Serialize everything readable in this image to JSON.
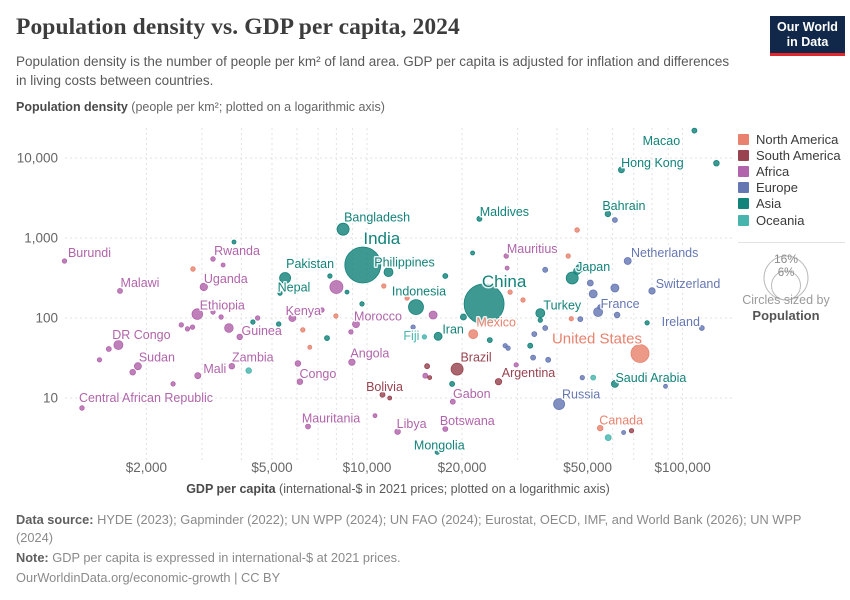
{
  "header": {
    "title": "Population density vs. GDP per capita, 2024",
    "subtitle": "Population density is the number of people per km² of land area. GDP per capita is adjusted for inflation and differences in living costs between countries.",
    "logo": {
      "line1": "Our World",
      "line2": "in Data"
    }
  },
  "legend": {
    "items": [
      {
        "label": "North America",
        "continent": "NA"
      },
      {
        "label": "South America",
        "continent": "SA"
      },
      {
        "label": "Africa",
        "continent": "AF"
      },
      {
        "label": "Europe",
        "continent": "EU"
      },
      {
        "label": "Asia",
        "continent": "AS"
      },
      {
        "label": "Oceania",
        "continent": "OC"
      }
    ],
    "size_legend": {
      "outer_label": "16%",
      "inner_label": "6%",
      "caption": "Circles sized by",
      "caption_bold": "Population"
    }
  },
  "chart_data": {
    "type": "scatter",
    "continent_colors": {
      "NA": "#e8826e",
      "SA": "#98434f",
      "AF": "#b164ab",
      "EU": "#6577b3",
      "AS": "#12837a",
      "OC": "#47b5ad"
    },
    "x_axis": {
      "scale": "log",
      "title_bold": "GDP per capita",
      "title_rest": " (international-$ in 2021 prices; plotted on a logarithmic axis)",
      "range": [
        1000,
        140000
      ],
      "ticks": [
        {
          "value": 2000,
          "label": "$2,000"
        },
        {
          "value": 5000,
          "label": "$5,000"
        },
        {
          "value": 10000,
          "label": "$10,000"
        },
        {
          "value": 20000,
          "label": "$20,000"
        },
        {
          "value": 50000,
          "label": "$50,000"
        },
        {
          "value": 100000,
          "label": "$100,000"
        }
      ],
      "gridlines": [
        2000,
        3000,
        4000,
        5000,
        6000,
        7000,
        8000,
        9000,
        10000,
        20000,
        30000,
        40000,
        50000,
        60000,
        70000,
        80000,
        90000,
        100000
      ]
    },
    "y_axis": {
      "scale": "log",
      "title_bold": "Population density",
      "title_rest": " (people per km²; plotted on a logarithmic axis)",
      "range": [
        1.7,
        24000
      ],
      "ticks": [
        {
          "value": 10,
          "label": "10"
        },
        {
          "value": 100,
          "label": "100"
        },
        {
          "value": 1000,
          "label": "1,000"
        },
        {
          "value": 10000,
          "label": "10,000"
        }
      ]
    },
    "points_format": [
      "name",
      "continent",
      "gdp_per_capita",
      "population_density",
      "radius_px",
      "label_dx",
      "label_dy",
      "label_font_size"
    ],
    "points": [
      [
        "Macao",
        "AS",
        109000,
        22000,
        2.5,
        -33,
        10,
        12.5
      ],
      [
        "Hong Kong",
        "AS",
        64000,
        7100,
        3,
        31,
        -7,
        12.5
      ],
      [
        "Bahrain",
        "AS",
        58000,
        2000,
        2.8,
        16,
        -8,
        12.5
      ],
      [
        "Maldives",
        "AS",
        22700,
        1740,
        2.5,
        25,
        -7,
        12.5
      ],
      [
        "Bangladesh",
        "AS",
        8400,
        1290,
        6,
        34,
        -12,
        12.5
      ],
      [
        "India",
        "AS",
        9700,
        460,
        18,
        19,
        -25,
        17
      ],
      [
        "Philippines",
        "AS",
        11700,
        375,
        4.5,
        16,
        -10,
        12.5
      ],
      [
        "Pakistan",
        "AS",
        5500,
        316,
        5.5,
        25,
        -14,
        12.5
      ],
      [
        "Nepal",
        "AS",
        5300,
        205,
        2.2,
        14,
        -6,
        12.5
      ],
      [
        "Indonesia",
        "AS",
        14300,
        137,
        7.5,
        3,
        -16,
        12.5
      ],
      [
        "China",
        "AS",
        23500,
        150,
        20,
        20,
        -21,
        17
      ],
      [
        "Japan",
        "AS",
        44700,
        316,
        6,
        21,
        -11,
        12.5
      ],
      [
        "Turkey",
        "AS",
        35400,
        115,
        4.5,
        22,
        -8,
        12.5
      ],
      [
        "Iran",
        "AS",
        16800,
        59,
        4,
        15,
        -7,
        12.5
      ],
      [
        "Saudi Arabia",
        "AS",
        61000,
        15,
        3.5,
        36,
        -6,
        12.5
      ],
      [
        "Mongolia",
        "AS",
        16700,
        2.1,
        2.2,
        2,
        -7,
        12.5
      ],
      [
        "Netherlands",
        "EU",
        67000,
        516,
        3.5,
        37,
        -8,
        12.5
      ],
      [
        "Switzerland",
        "EU",
        80000,
        218,
        3.2,
        36,
        -7,
        12.5
      ],
      [
        "France",
        "EU",
        54000,
        119,
        4.5,
        22,
        -8,
        12.5
      ],
      [
        "Ireland",
        "EU",
        115000,
        75,
        2.5,
        -21,
        -6,
        12.5
      ],
      [
        "Russia",
        "EU",
        40600,
        8.4,
        5.5,
        22,
        -10,
        12.5
      ],
      [
        "United States",
        "NA",
        73300,
        36,
        9,
        -43,
        -14,
        15
      ],
      [
        "Mexico",
        "NA",
        21700,
        63,
        4.5,
        23,
        -12,
        12.5
      ],
      [
        "Canada",
        "NA",
        54800,
        4.2,
        2.8,
        21,
        -8,
        12.5
      ],
      [
        "Brazil",
        "SA",
        19300,
        23,
        6,
        19,
        -12,
        12.5
      ],
      [
        "Argentina",
        "SA",
        26100,
        16,
        3.2,
        30,
        -9,
        12.5
      ],
      [
        "Bolivia",
        "SA",
        11200,
        11,
        2.5,
        2,
        -8,
        12.5
      ],
      [
        "Burundi",
        "AF",
        1100,
        516,
        2.2,
        25,
        -8,
        12.5
      ],
      [
        "Rwanda",
        "AF",
        3250,
        546,
        2.3,
        24,
        -8,
        12.5
      ],
      [
        "Malawi",
        "AF",
        1650,
        218,
        2.5,
        20,
        -8,
        12.5
      ],
      [
        "Uganda",
        "AF",
        3040,
        244,
        3.7,
        22,
        -8,
        12.5
      ],
      [
        "Ethiopia",
        "AF",
        2900,
        112,
        5.3,
        25,
        -9,
        12.5
      ],
      [
        "Kenya",
        "AF",
        5800,
        100,
        3.5,
        11,
        -7,
        12.5
      ],
      [
        "DR Congo",
        "AF",
        1630,
        46,
        4.5,
        23,
        -10,
        12.5
      ],
      [
        "Guinea",
        "AF",
        3950,
        58,
        2.8,
        22,
        -6,
        12.5
      ],
      [
        "Sudan",
        "AF",
        1880,
        25,
        3.5,
        19,
        -9,
        12.5
      ],
      [
        "Zambia",
        "AF",
        3730,
        25,
        2.8,
        21,
        -9,
        12.5
      ],
      [
        "Mali",
        "AF",
        2910,
        19,
        3,
        17,
        -7,
        12.5
      ],
      [
        "Angola",
        "AF",
        8960,
        28,
        3.2,
        18,
        -9,
        12.5
      ],
      [
        "Congo",
        "AF",
        6130,
        16,
        2.8,
        18,
        -8,
        12.5
      ],
      [
        "Central African Republic",
        "AF",
        1250,
        7.5,
        2.3,
        64,
        -10,
        12.5
      ],
      [
        "Mauritania",
        "AF",
        6500,
        4.4,
        2.5,
        23,
        -8,
        12.5
      ],
      [
        "Libya",
        "AF",
        12500,
        3.8,
        2.8,
        14,
        -8,
        12.5
      ],
      [
        "Botswana",
        "AF",
        17700,
        4.1,
        2.5,
        22,
        -8,
        12.5
      ],
      [
        "Gabon",
        "AF",
        18700,
        9,
        2.5,
        19,
        -8,
        12.5
      ],
      [
        "Morocco",
        "AF",
        9230,
        84,
        3.5,
        22,
        -8,
        12.5
      ],
      [
        "Mauritius",
        "AF",
        27600,
        595,
        2.3,
        26,
        -7,
        12.5
      ],
      [
        "Fiji",
        "OC",
        15200,
        58,
        2.2,
        -13,
        -1,
        12.5
      ],
      [
        "",
        "AS",
        128000,
        8600,
        2.8,
        null,
        null,
        null
      ],
      [
        "",
        "AS",
        3790,
        890,
        2,
        null,
        null,
        null
      ],
      [
        "",
        "NA",
        46300,
        1260,
        2.3,
        null,
        null,
        null
      ],
      [
        "",
        "EU",
        61000,
        1680,
        2.5,
        null,
        null,
        null
      ],
      [
        "",
        "NA",
        43400,
        595,
        2.2,
        null,
        null,
        null
      ],
      [
        "",
        "NA",
        31200,
        168,
        2.2,
        null,
        null,
        null
      ],
      [
        "",
        "AS",
        17700,
        335,
        2.5,
        null,
        null,
        null
      ],
      [
        "",
        "AS",
        21600,
        650,
        2,
        null,
        null,
        null
      ],
      [
        "",
        "AF",
        27800,
        420,
        2,
        null,
        null,
        null
      ],
      [
        "",
        "AS",
        20200,
        103,
        3,
        null,
        null,
        null
      ],
      [
        "",
        "AF",
        16200,
        109,
        4,
        null,
        null,
        null
      ],
      [
        "",
        "EU",
        14000,
        77,
        2.2,
        null,
        null,
        null
      ],
      [
        "",
        "SA",
        15500,
        25,
        2.5,
        null,
        null,
        null
      ],
      [
        "",
        "AF",
        15300,
        19,
        2.5,
        null,
        null,
        null
      ],
      [
        "",
        "SA",
        15800,
        18,
        2,
        null,
        null,
        null
      ],
      [
        "",
        "AS",
        18600,
        15,
        2.5,
        null,
        null,
        null
      ],
      [
        "",
        "AS",
        24500,
        53,
        2.5,
        null,
        null,
        null
      ],
      [
        "",
        "EU",
        27400,
        45,
        2.2,
        null,
        null,
        null
      ],
      [
        "",
        "EU",
        28000,
        42,
        2.2,
        null,
        null,
        null
      ],
      [
        "",
        "AS",
        32900,
        45,
        2.5,
        null,
        null,
        null
      ],
      [
        "",
        "EU",
        33600,
        32,
        2.5,
        null,
        null,
        null
      ],
      [
        "",
        "AF",
        29700,
        26,
        2.2,
        null,
        null,
        null
      ],
      [
        "",
        "EU",
        37500,
        30,
        2.5,
        null,
        null,
        null
      ],
      [
        "",
        "EU",
        36700,
        75,
        2.5,
        null,
        null,
        null
      ],
      [
        "",
        "EU",
        33900,
        63,
        2.5,
        null,
        null,
        null
      ],
      [
        "",
        "AS",
        35400,
        94,
        2.2,
        null,
        null,
        null
      ],
      [
        "",
        "NA",
        28400,
        211,
        2.2,
        null,
        null,
        null
      ],
      [
        "",
        "NA",
        11300,
        251,
        2.2,
        null,
        null,
        null
      ],
      [
        "",
        "NA",
        13400,
        178,
        2.2,
        null,
        null,
        null
      ],
      [
        "",
        "AS",
        9640,
        150,
        2.2,
        null,
        null,
        null
      ],
      [
        "",
        "AS",
        7630,
        335,
        2.2,
        null,
        null,
        null
      ],
      [
        "",
        "AF",
        7200,
        126,
        2.2,
        null,
        null,
        null
      ],
      [
        "",
        "NA",
        7970,
        106,
        2.2,
        null,
        null,
        null
      ],
      [
        "",
        "NA",
        6260,
        71,
        2.2,
        null,
        null,
        null
      ],
      [
        "",
        "AS",
        7470,
        56,
        2.5,
        null,
        null,
        null
      ],
      [
        "",
        "AF",
        8890,
        67,
        2.2,
        null,
        null,
        null
      ],
      [
        "",
        "NA",
        6590,
        43,
        2,
        null,
        null,
        null
      ],
      [
        "",
        "AF",
        1420,
        30,
        2.2,
        null,
        null,
        null
      ],
      [
        "",
        "AF",
        1520,
        41,
        2.5,
        null,
        null,
        null
      ],
      [
        "",
        "AF",
        1810,
        21,
        2.8,
        null,
        null,
        null
      ],
      [
        "",
        "AF",
        2430,
        15,
        2.2,
        null,
        null,
        null
      ],
      [
        "",
        "AF",
        2580,
        82,
        2.2,
        null,
        null,
        null
      ],
      [
        "",
        "AF",
        2700,
        73,
        2.2,
        null,
        null,
        null
      ],
      [
        "",
        "AF",
        2800,
        77,
        2.2,
        null,
        null,
        null
      ],
      [
        "",
        "AS",
        4350,
        89,
        2.2,
        null,
        null,
        null
      ],
      [
        "",
        "EU",
        51000,
        274,
        3,
        null,
        null,
        null
      ],
      [
        "",
        "EU",
        52100,
        200,
        4,
        null,
        null,
        null
      ],
      [
        "",
        "EU",
        61000,
        237,
        4,
        null,
        null,
        null
      ],
      [
        "",
        "EU",
        47400,
        97,
        2.5,
        null,
        null,
        null
      ],
      [
        "",
        "EU",
        62000,
        109,
        2.8,
        null,
        null,
        null
      ],
      [
        "",
        "EU",
        54800,
        137,
        2.5,
        null,
        null,
        null
      ],
      [
        "",
        "EU",
        48100,
        18,
        2.2,
        null,
        null,
        null
      ],
      [
        "",
        "EU",
        88300,
        14,
        2,
        null,
        null,
        null
      ],
      [
        "",
        "EU",
        65000,
        3.7,
        2,
        null,
        null,
        null
      ],
      [
        "",
        "EU",
        36700,
        400,
        2.5,
        null,
        null,
        null
      ],
      [
        "",
        "SA",
        68900,
        3.9,
        2.2,
        null,
        null,
        null
      ],
      [
        "",
        "NA",
        44400,
        98,
        2.2,
        null,
        null,
        null
      ],
      [
        "",
        "AS",
        77200,
        87,
        2.2,
        null,
        null,
        null
      ],
      [
        "",
        "AS",
        47300,
        420,
        4,
        null,
        null,
        null
      ],
      [
        "",
        "AS",
        46300,
        387,
        3.5,
        null,
        null,
        null
      ],
      [
        "",
        "AF",
        10600,
        6,
        2,
        null,
        null,
        null
      ],
      [
        "",
        "SA",
        11800,
        10,
        2,
        null,
        null,
        null
      ],
      [
        "",
        "AF",
        6040,
        27,
        2.8,
        null,
        null,
        null
      ],
      [
        "",
        "AS",
        8640,
        211,
        2,
        null,
        null,
        null
      ],
      [
        "",
        "AF",
        8000,
        244,
        6.5,
        null,
        null,
        null
      ],
      [
        "",
        "AF",
        3650,
        75,
        4.3,
        null,
        null,
        null
      ],
      [
        "",
        "OC",
        4220,
        22,
        2.8,
        null,
        null,
        null
      ],
      [
        "",
        "OC",
        58100,
        3.2,
        3,
        null,
        null,
        null
      ],
      [
        "",
        "OC",
        52100,
        18,
        2.5,
        null,
        null,
        null
      ],
      [
        "",
        "AS",
        5250,
        84,
        2.3,
        null,
        null,
        null
      ],
      [
        "",
        "AF",
        3500,
        460,
        2,
        null,
        null,
        null
      ],
      [
        "",
        "AF",
        3250,
        119,
        2.2,
        null,
        null,
        null
      ],
      [
        "",
        "AF",
        3450,
        103,
        2.2,
        null,
        null,
        null
      ],
      [
        "",
        "NA",
        2810,
        410,
        2.3,
        null,
        null,
        null
      ],
      [
        "",
        "AF",
        4500,
        100,
        2.2,
        null,
        null,
        null
      ]
    ]
  },
  "footer": {
    "data_source_label": "Data source:",
    "data_source": " HYDE (2023); Gapminder (2022); UN WPP (2024); UN FAO (2024); Eurostat, OECD, IMF, and World Bank (2026); UN WPP (2024)",
    "note_label": "Note:",
    "note": " GDP per capita is expressed in international-$ at 2021 prices.",
    "link": "OurWorldinData.org/economic-growth",
    "separator": " | ",
    "license": "CC BY"
  }
}
